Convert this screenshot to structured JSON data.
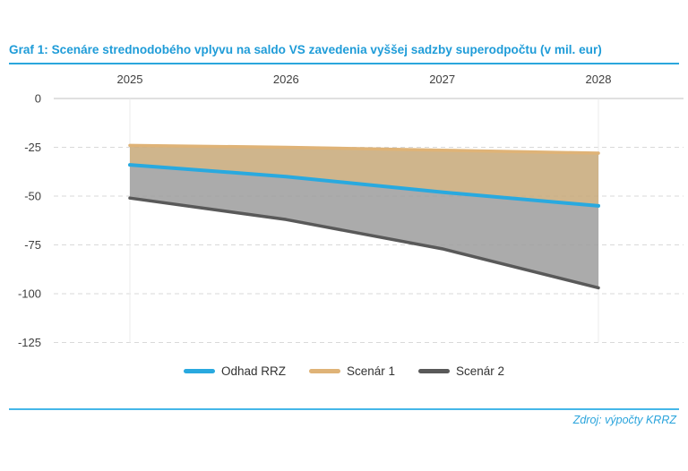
{
  "header": {
    "title": "Graf 1: Scenáre strednodobého vplyvu na saldo VS zavedenia vyššej sadzby superodpočtu (v mil. eur)",
    "accent_color": "#2ba6dc"
  },
  "chart_data": {
    "type": "area",
    "title": "Graf 1: Scenáre strednodobého vplyvu na saldo VS zavedenia vyššej sadzby superodpočtu (v mil. eur)",
    "x": [
      "2025",
      "2026",
      "2027",
      "2028"
    ],
    "x_axis_position": "top",
    "series": [
      {
        "name": "Odhad RRZ",
        "color": "#29a9df",
        "values": [
          -34,
          -40,
          -48,
          -55
        ]
      },
      {
        "name": "Scenár 1",
        "color": "#dfb377",
        "values": [
          -24,
          -25,
          -26.5,
          -28
        ]
      },
      {
        "name": "Scenár 2",
        "color": "#595959",
        "values": [
          -51,
          -62,
          -77,
          -97
        ]
      }
    ],
    "bands": [
      {
        "top": "Scenár 1",
        "bottom": "Odhad RRZ",
        "fill": "#c7a878"
      },
      {
        "top": "Odhad RRZ",
        "bottom": "Scenár 2",
        "fill": "#9c9c9c"
      }
    ],
    "yticks": [
      0,
      -25,
      -50,
      -75,
      -100,
      -125
    ],
    "ylim": [
      0,
      -125
    ],
    "unit": "mil. eur",
    "grid": {
      "horizontal": "dashed",
      "zero_line": "solid",
      "color": "#d9d9d9",
      "zero_color": "#c0c0c0",
      "plot_edge_color": "#ebebeb"
    },
    "legend_position": "bottom"
  },
  "legend": {
    "items": [
      "Odhad RRZ",
      "Scenár 1",
      "Scenár 2"
    ]
  },
  "footer": {
    "source_text": "Zdroj: výpočty KRRZ"
  }
}
